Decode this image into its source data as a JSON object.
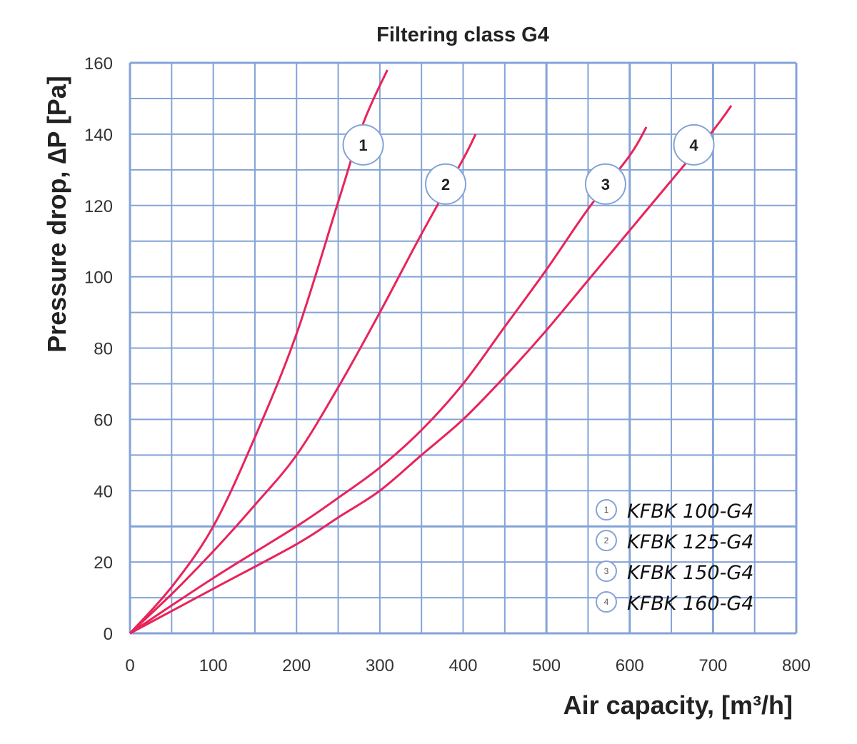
{
  "chart_data": {
    "type": "line",
    "title": "Filtering class G4",
    "xlabel": "Air capacity, [m³/h]",
    "ylabel": "Pressure drop, ∆P [Pa]",
    "xlim": [
      0,
      800
    ],
    "ylim": [
      0,
      160
    ],
    "xticks": [
      "0",
      "100",
      "200",
      "300",
      "400",
      "500",
      "600",
      "700",
      "800"
    ],
    "yticks": [
      "0",
      "20",
      "40",
      "60",
      "80",
      "100",
      "120",
      "140",
      "160"
    ],
    "grid": true,
    "grid_minor_x_step": 50,
    "grid_minor_y_step": 10,
    "grid_emphasis_x": [
      500,
      600,
      700
    ],
    "grid_emphasis_y": [
      30
    ],
    "legend_placement": "bottom-right",
    "colors": {
      "curve": "#e8245a",
      "grid": "#84a3d8",
      "marker_border": "#84a3d8"
    },
    "series": [
      {
        "name": "KFBK 100-G4",
        "marker": "1",
        "marker_at": [
          280,
          137
        ],
        "x": [
          0,
          50,
          100,
          150,
          200,
          250,
          280,
          309
        ],
        "y": [
          0,
          13,
          30,
          55,
          84,
          121,
          143,
          158
        ]
      },
      {
        "name": "KFBK 125-G4",
        "marker": "2",
        "marker_at": [
          379,
          126
        ],
        "x": [
          0,
          50,
          100,
          150,
          200,
          250,
          300,
          350,
          400,
          415
        ],
        "y": [
          0,
          11,
          23,
          36,
          50,
          69,
          90,
          112,
          133,
          140
        ]
      },
      {
        "name": "KFBK 150-G4",
        "marker": "3",
        "marker_at": [
          571,
          126
        ],
        "x": [
          0,
          100,
          200,
          250,
          300,
          350,
          400,
          450,
          500,
          550,
          600,
          620
        ],
        "y": [
          0,
          15.5,
          30,
          38,
          46.5,
          57,
          70,
          86,
          102,
          119,
          134,
          142
        ]
      },
      {
        "name": "KFBK 160-G4",
        "marker": "4",
        "marker_at": [
          677,
          137
        ],
        "x": [
          0,
          100,
          200,
          250,
          300,
          350,
          400,
          450,
          500,
          550,
          600,
          650,
          700,
          722
        ],
        "y": [
          0,
          12.5,
          25,
          32.5,
          40,
          50,
          60,
          72,
          85,
          99,
          113,
          127,
          141,
          148
        ]
      }
    ]
  }
}
